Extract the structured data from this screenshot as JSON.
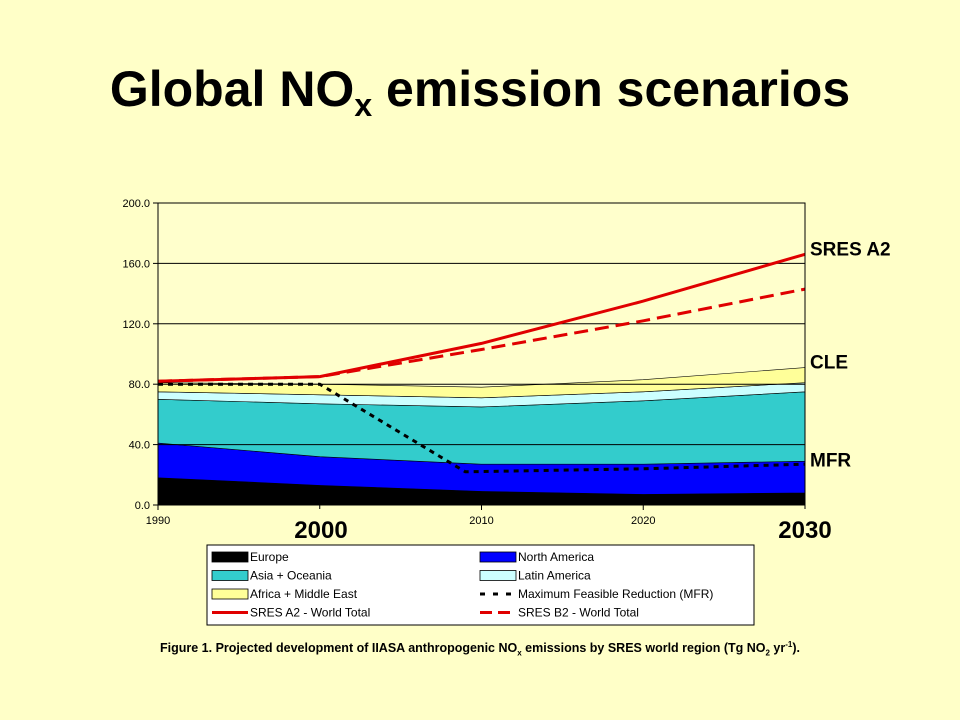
{
  "title": {
    "main": "Global NO",
    "sub": "x",
    "rest": " emission scenarios"
  },
  "caption": {
    "part1": "Figure 1. Projected development of IIASA anthropogenic NO",
    "sub1": "x",
    "part2": " emissions by SRES world region (Tg NO",
    "sub2": "2",
    "part3": " yr",
    "sup1": "-1",
    "part4": ")."
  },
  "chart_data": {
    "type": "area",
    "x": [
      1990,
      2000,
      2010,
      2020,
      2030
    ],
    "xlim": [
      1990,
      2030
    ],
    "ylim": [
      0,
      200
    ],
    "y_ticks": [
      "0.0",
      "40.0",
      "80.0",
      "120.0",
      "160.0",
      "200.0"
    ],
    "x_ticks": [
      "1990",
      "2000",
      "2010",
      "2020",
      "2030"
    ],
    "grid": true,
    "stacked_series": [
      {
        "name": "Europe",
        "color": "#000000",
        "values": [
          18,
          13,
          9,
          7,
          8
        ]
      },
      {
        "name": "North America",
        "color": "#0000ff",
        "values": [
          23,
          19,
          18,
          20,
          21
        ]
      },
      {
        "name": "Asia + Oceania",
        "color": "#33cccc",
        "values": [
          29,
          35,
          38,
          42,
          46
        ]
      },
      {
        "name": "Latin America",
        "color": "#ccffff",
        "values": [
          5,
          6,
          6,
          6,
          6
        ]
      },
      {
        "name": "Africa + Middle East",
        "color": "#ffff99",
        "values": [
          6,
          7,
          7,
          8,
          10
        ]
      }
    ],
    "line_series": [
      {
        "name": "Maximum Feasible Reduction (MFR)",
        "color": "#000000",
        "style": "dotted",
        "x": [
          1990,
          2000,
          2009,
          2020,
          2030
        ],
        "values": [
          80,
          80,
          22,
          24,
          27
        ]
      },
      {
        "name": "SRES A2 - World Total",
        "color": "#e00000",
        "style": "solid",
        "x": [
          1990,
          2000,
          2010,
          2020,
          2030
        ],
        "values": [
          82,
          85,
          107,
          135,
          166
        ]
      },
      {
        "name": "SRES B2 - World Total",
        "color": "#e00000",
        "style": "dashed",
        "x": [
          1990,
          2000,
          2010,
          2020,
          2030
        ],
        "values": [
          82,
          85,
          103,
          122,
          143
        ]
      }
    ],
    "annotations": [
      {
        "text": "SRES A2",
        "y": 168
      },
      {
        "text": "CLE",
        "y": 93
      },
      {
        "text": "MFR",
        "y": 28
      }
    ],
    "big_x_labels": [
      "2000",
      "2030"
    ],
    "legend": [
      {
        "label": "Europe",
        "kind": "box",
        "color": "#000000"
      },
      {
        "label": "North America",
        "kind": "box",
        "color": "#0000ff"
      },
      {
        "label": "Asia + Oceania",
        "kind": "box",
        "color": "#33cccc"
      },
      {
        "label": "Latin America",
        "kind": "box",
        "color": "#ccffff"
      },
      {
        "label": "Africa + Middle East",
        "kind": "box",
        "color": "#ffff99"
      },
      {
        "label": "Maximum Feasible Reduction (MFR)",
        "kind": "dotted",
        "color": "#000000"
      },
      {
        "label": "SRES A2 - World Total",
        "kind": "solid",
        "color": "#e00000"
      },
      {
        "label": "SRES B2 - World Total",
        "kind": "dashed",
        "color": "#e00000"
      }
    ]
  }
}
